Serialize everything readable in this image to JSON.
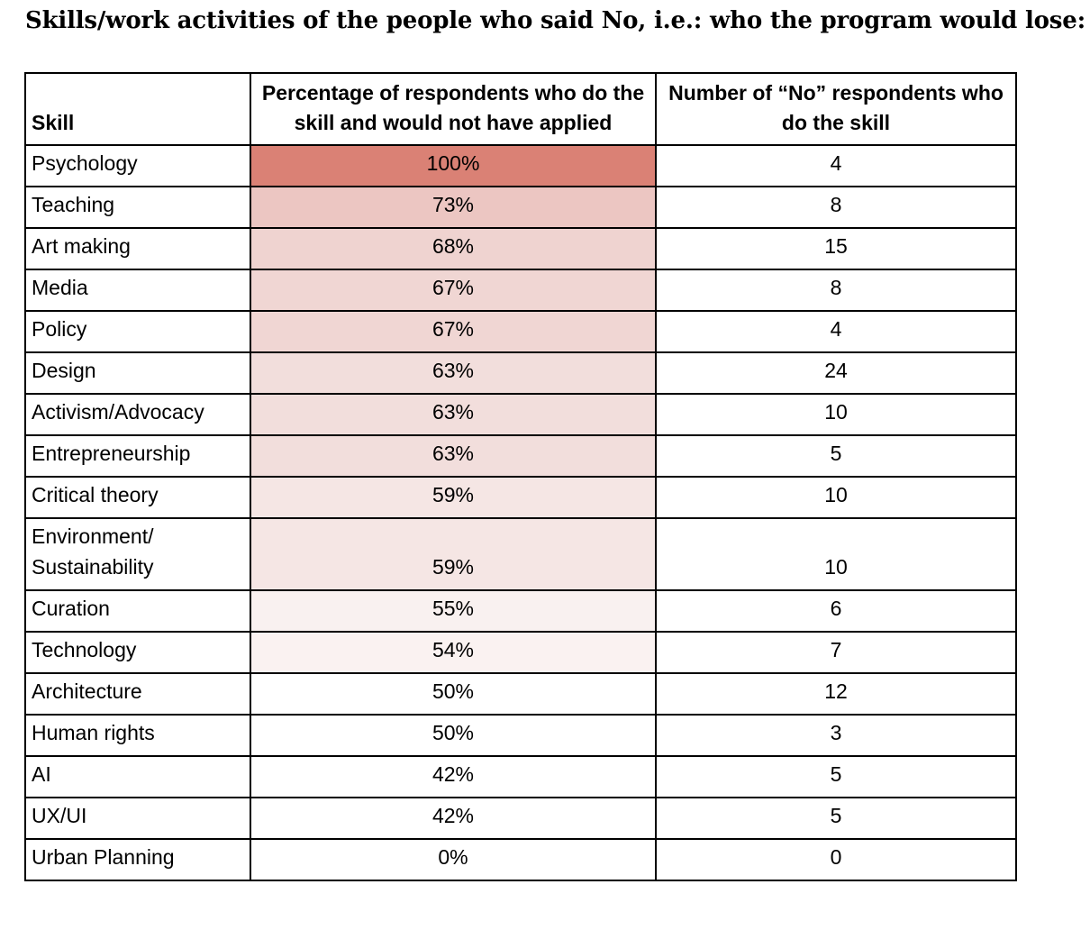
{
  "heading": "Skills/work activities of the people who said No, i.e.: who the program would lose:",
  "table": {
    "headers": {
      "skill": "Skill",
      "percentage": "Percentage of respondents who do the skill and would not have applied",
      "count": "Number of “No” respondents who do the skill"
    },
    "rows": [
      {
        "skill": "Psychology",
        "percentage": "100%",
        "count": "4",
        "fill": "#da8175"
      },
      {
        "skill": "Teaching",
        "percentage": "73%",
        "count": "8",
        "fill": "#ecc6c2"
      },
      {
        "skill": "Art making",
        "percentage": "68%",
        "count": "15",
        "fill": "#efd3d0"
      },
      {
        "skill": "Media",
        "percentage": "67%",
        "count": "8",
        "fill": "#f0d6d3"
      },
      {
        "skill": "Policy",
        "percentage": "67%",
        "count": "4",
        "fill": "#f0d6d3"
      },
      {
        "skill": "Design",
        "percentage": "63%",
        "count": "24",
        "fill": "#f2dedc"
      },
      {
        "skill": "Activism/Advocacy",
        "percentage": "63%",
        "count": "10",
        "fill": "#f2dedc"
      },
      {
        "skill": "Entrepreneurship",
        "percentage": "63%",
        "count": "5",
        "fill": "#f2dedc"
      },
      {
        "skill": "Critical theory",
        "percentage": "59%",
        "count": "10",
        "fill": "#f5e6e4"
      },
      {
        "skill": "Environment/ Sustainability",
        "percentage": "59%",
        "count": "10",
        "fill": "#f5e6e4"
      },
      {
        "skill": "Curation",
        "percentage": "55%",
        "count": "6",
        "fill": "#f9f1f0"
      },
      {
        "skill": "Technology",
        "percentage": "54%",
        "count": "7",
        "fill": "#faf2f1"
      },
      {
        "skill": "Architecture",
        "percentage": "50%",
        "count": "12",
        "fill": "#ffffff"
      },
      {
        "skill": "Human rights",
        "percentage": "50%",
        "count": "3",
        "fill": "#ffffff"
      },
      {
        "skill": "AI",
        "percentage": "42%",
        "count": "5",
        "fill": "#ffffff"
      },
      {
        "skill": "UX/UI",
        "percentage": "42%",
        "count": "5",
        "fill": "#ffffff"
      },
      {
        "skill": "Urban Planning",
        "percentage": "0%",
        "count": "0",
        "fill": "#ffffff"
      }
    ]
  }
}
